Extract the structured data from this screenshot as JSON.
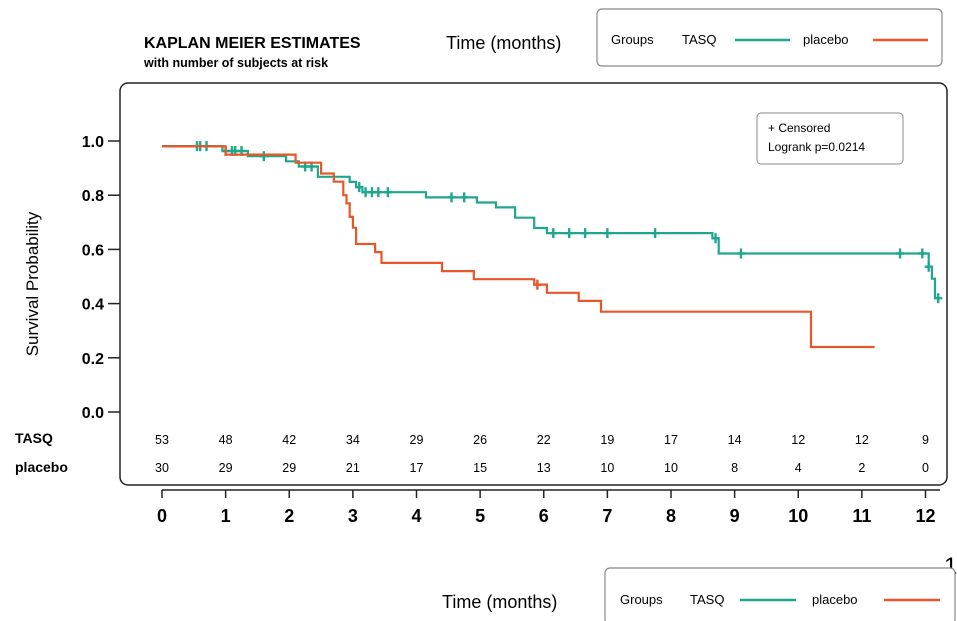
{
  "page_number": "1",
  "chart_data": {
    "type": "line",
    "step": true,
    "title": "KAPLAN MEIER ESTIMATES",
    "subtitle": "with number of subjects at risk",
    "xlabel": "Time (months)",
    "ylabel": "Survival Probability",
    "xlim": [
      0,
      12.2
    ],
    "ylim": [
      0,
      1.0
    ],
    "x_ticks": [
      "0",
      "1",
      "2",
      "3",
      "4",
      "5",
      "6",
      "7",
      "8",
      "9",
      "10",
      "11",
      "12"
    ],
    "y_ticks": [
      "0.0",
      "0.2",
      "0.4",
      "0.6",
      "0.8",
      "1.0"
    ],
    "legend": {
      "title": "Groups",
      "placement": "top-right, outside plot (repeated at bottom)",
      "entries": [
        {
          "name": "TASQ",
          "color": "#1fa68f"
        },
        {
          "name": "placebo",
          "color": "#e8572a"
        }
      ]
    },
    "annotation": {
      "censored_label": "+ Censored",
      "logrank": "Logrank p=0.0214"
    },
    "series": [
      {
        "name": "TASQ",
        "color": "#1fa68f",
        "steps": [
          [
            0.0,
            0.981
          ],
          [
            0.45,
            0.981
          ],
          [
            0.95,
            0.963
          ],
          [
            1.35,
            0.944
          ],
          [
            1.95,
            0.925
          ],
          [
            2.15,
            0.906
          ],
          [
            2.45,
            0.868
          ],
          [
            2.95,
            0.849
          ],
          [
            3.05,
            0.83
          ],
          [
            3.15,
            0.811
          ],
          [
            4.15,
            0.792
          ],
          [
            4.95,
            0.773
          ],
          [
            5.25,
            0.755
          ],
          [
            5.55,
            0.717
          ],
          [
            5.85,
            0.679
          ],
          [
            6.05,
            0.66
          ],
          [
            8.65,
            0.641
          ],
          [
            8.75,
            0.585
          ],
          [
            12.0,
            0.585
          ],
          [
            12.05,
            0.536
          ],
          [
            12.1,
            0.492
          ],
          [
            12.15,
            0.42
          ],
          [
            12.2,
            0.42
          ]
        ],
        "censored_x": [
          0.55,
          0.6,
          0.7,
          1.0,
          1.1,
          1.15,
          1.25,
          1.6,
          2.25,
          2.35,
          3.1,
          3.2,
          3.3,
          3.4,
          3.55,
          4.55,
          4.75,
          6.15,
          6.4,
          6.65,
          7.0,
          7.75,
          8.7,
          9.1,
          11.6,
          11.95,
          12.05,
          12.2
        ]
      },
      {
        "name": "placebo",
        "color": "#e8572a",
        "steps": [
          [
            0.0,
            0.98
          ],
          [
            1.0,
            0.95
          ],
          [
            1.55,
            0.95
          ],
          [
            2.1,
            0.92
          ],
          [
            2.5,
            0.88
          ],
          [
            2.7,
            0.85
          ],
          [
            2.85,
            0.8
          ],
          [
            2.9,
            0.77
          ],
          [
            2.95,
            0.72
          ],
          [
            3.0,
            0.68
          ],
          [
            3.05,
            0.62
          ],
          [
            3.35,
            0.59
          ],
          [
            3.45,
            0.55
          ],
          [
            4.4,
            0.52
          ],
          [
            4.9,
            0.49
          ],
          [
            5.85,
            0.47
          ],
          [
            6.05,
            0.44
          ],
          [
            6.55,
            0.41
          ],
          [
            6.9,
            0.37
          ],
          [
            10.2,
            0.24
          ],
          [
            11.2,
            0.24
          ]
        ],
        "censored_x": [
          5.9
        ]
      }
    ],
    "at_risk": {
      "times": [
        0,
        1,
        2,
        3,
        4,
        5,
        6,
        7,
        8,
        9,
        10,
        11,
        12
      ],
      "rows": [
        {
          "name": "TASQ",
          "values": [
            "53",
            "48",
            "42",
            "34",
            "29",
            "26",
            "22",
            "19",
            "17",
            "14",
            "12",
            "12",
            "9"
          ]
        },
        {
          "name": "placebo",
          "values": [
            "30",
            "29",
            "29",
            "21",
            "17",
            "15",
            "13",
            "10",
            "10",
            "8",
            "4",
            "2",
            "0"
          ]
        }
      ]
    }
  }
}
